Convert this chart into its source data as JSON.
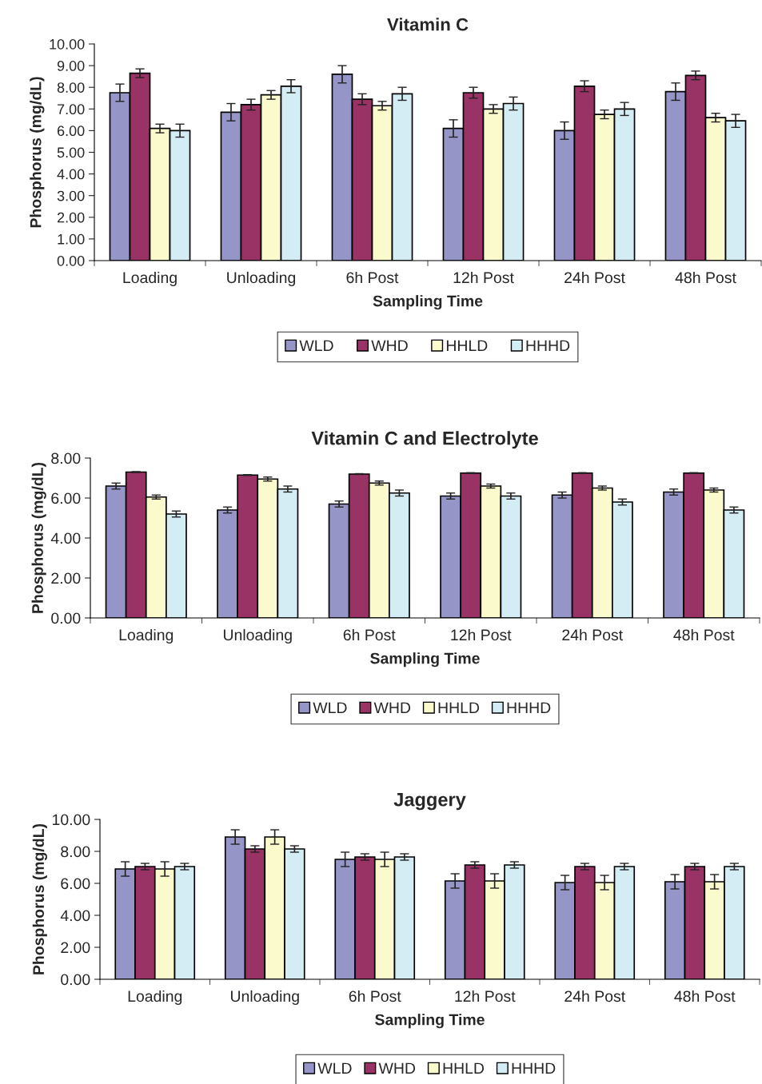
{
  "chart_data": [
    {
      "type": "bar",
      "title": "Vitamin C",
      "xlabel": "Sampling Time",
      "ylabel": "Phosphorus (mg/dL)",
      "categories": [
        "Loading",
        "Unloading",
        "6h Post",
        "12h Post",
        "24h Post",
        "48h Post"
      ],
      "legend": "bottom",
      "grid": false,
      "ylim": [
        0,
        10
      ],
      "yticks": [
        {
          "value": 0,
          "label": "0.00"
        },
        {
          "value": 1,
          "label": "1.00"
        },
        {
          "value": 2,
          "label": "2.00"
        },
        {
          "value": 3,
          "label": "3.00"
        },
        {
          "value": 4,
          "label": "4.00"
        },
        {
          "value": 5,
          "label": "5.00"
        },
        {
          "value": 6,
          "label": "6.00"
        },
        {
          "value": 7,
          "label": "7.00"
        },
        {
          "value": 8,
          "label": "8.00"
        },
        {
          "value": 9,
          "label": "9.00"
        },
        {
          "value": 10,
          "label": "10.00"
        }
      ],
      "series": [
        {
          "name": "WLD",
          "color": "#9595c8",
          "values": [
            7.75,
            6.85,
            8.6,
            6.1,
            6.0,
            7.8
          ],
          "errors": [
            0.4,
            0.4,
            0.4,
            0.4,
            0.4,
            0.4
          ]
        },
        {
          "name": "WHD",
          "color": "#993366",
          "values": [
            8.65,
            7.2,
            7.45,
            7.75,
            8.05,
            8.55
          ],
          "errors": [
            0.2,
            0.25,
            0.25,
            0.25,
            0.25,
            0.2
          ]
        },
        {
          "name": "HHLD",
          "color": "#fafacd",
          "values": [
            6.1,
            7.65,
            7.15,
            7.0,
            6.75,
            6.6
          ],
          "errors": [
            0.2,
            0.2,
            0.2,
            0.2,
            0.2,
            0.2
          ]
        },
        {
          "name": "HHHD",
          "color": "#d4ecf4",
          "values": [
            6.0,
            8.05,
            7.7,
            7.25,
            7.0,
            6.45
          ],
          "errors": [
            0.3,
            0.3,
            0.3,
            0.3,
            0.3,
            0.3
          ]
        }
      ]
    },
    {
      "type": "bar",
      "title": "Vitamin C and Electrolyte",
      "xlabel": "Sampling Time",
      "ylabel": "Phosphorus (mg/dL)",
      "categories": [
        "Loading",
        "Unloading",
        "6h Post",
        "12h Post",
        "24h Post",
        "48h Post"
      ],
      "legend": "bottom",
      "grid": false,
      "ylim": [
        0,
        8
      ],
      "yticks": [
        {
          "value": 0,
          "label": "0.00"
        },
        {
          "value": 2,
          "label": "2.00"
        },
        {
          "value": 4,
          "label": "4.00"
        },
        {
          "value": 6,
          "label": "6.00"
        },
        {
          "value": 8,
          "label": "8.00"
        }
      ],
      "series": [
        {
          "name": "WLD",
          "color": "#9595c8",
          "values": [
            6.6,
            5.4,
            5.7,
            6.1,
            6.15,
            6.3
          ],
          "errors": [
            0.15,
            0.15,
            0.15,
            0.15,
            0.15,
            0.15
          ]
        },
        {
          "name": "WHD",
          "color": "#993366",
          "values": [
            7.3,
            7.15,
            7.2,
            7.25,
            7.25,
            7.25
          ],
          "errors": [
            0.02,
            0.02,
            0.02,
            0.02,
            0.02,
            0.02
          ]
        },
        {
          "name": "HHLD",
          "color": "#fafacd",
          "values": [
            6.05,
            6.95,
            6.75,
            6.6,
            6.5,
            6.4
          ],
          "errors": [
            0.1,
            0.1,
            0.1,
            0.1,
            0.1,
            0.1
          ]
        },
        {
          "name": "HHHD",
          "color": "#d4ecf4",
          "values": [
            5.2,
            6.45,
            6.25,
            6.1,
            5.8,
            5.4
          ],
          "errors": [
            0.15,
            0.15,
            0.15,
            0.15,
            0.15,
            0.15
          ]
        }
      ]
    },
    {
      "type": "bar",
      "title": "Jaggery",
      "xlabel": "Sampling Time",
      "ylabel": "Phosphorus (mg/dL)",
      "categories": [
        "Loading",
        "Unloading",
        "6h Post",
        "12h Post",
        "24h Post",
        "48h Post"
      ],
      "legend": "bottom",
      "grid": false,
      "ylim": [
        0,
        10
      ],
      "yticks": [
        {
          "value": 0,
          "label": "0.00"
        },
        {
          "value": 2,
          "label": "2.00"
        },
        {
          "value": 4,
          "label": "4.00"
        },
        {
          "value": 6,
          "label": "6.00"
        },
        {
          "value": 8,
          "label": "8.00"
        },
        {
          "value": 10,
          "label": "10.00"
        }
      ],
      "series": [
        {
          "name": "WLD",
          "color": "#9595c8",
          "values": [
            6.9,
            8.9,
            7.5,
            6.15,
            6.05,
            6.1
          ],
          "errors": [
            0.45,
            0.45,
            0.45,
            0.45,
            0.45,
            0.45
          ]
        },
        {
          "name": "WHD",
          "color": "#993366",
          "values": [
            7.05,
            8.15,
            7.65,
            7.15,
            7.05,
            7.05
          ],
          "errors": [
            0.2,
            0.2,
            0.2,
            0.2,
            0.2,
            0.2
          ]
        },
        {
          "name": "HHLD",
          "color": "#fafacd",
          "values": [
            6.9,
            8.9,
            7.5,
            6.15,
            6.05,
            6.1
          ],
          "errors": [
            0.45,
            0.45,
            0.45,
            0.45,
            0.45,
            0.45
          ]
        },
        {
          "name": "HHHD",
          "color": "#d4ecf4",
          "values": [
            7.05,
            8.15,
            7.65,
            7.15,
            7.05,
            7.05
          ],
          "errors": [
            0.2,
            0.2,
            0.2,
            0.2,
            0.2,
            0.2
          ]
        }
      ]
    }
  ]
}
